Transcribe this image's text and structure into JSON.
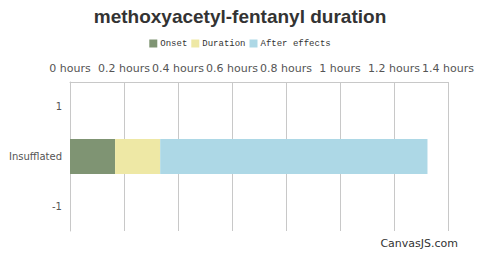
{
  "chart_data": {
    "type": "bar",
    "title": "methoxyacetyl-fentanyl duration",
    "orientation": "horizontal",
    "stacked": true,
    "grid": true,
    "legend": "top",
    "categories": [
      "1",
      "Insufflated",
      "-1"
    ],
    "series": [
      {
        "name": "Onset",
        "color": "#7f9473",
        "values": [
          null,
          0.167,
          null
        ]
      },
      {
        "name": "Duration",
        "color": "#eee8a5",
        "values": [
          null,
          0.167,
          null
        ]
      },
      {
        "name": "After effects",
        "color": "#add8e6",
        "values": [
          null,
          0.99,
          null
        ]
      }
    ],
    "xlim": [
      0,
      1.4
    ],
    "xticks": [
      {
        "value": 0,
        "label": "0 hours"
      },
      {
        "value": 0.2,
        "label": "0.2 hours"
      },
      {
        "value": 0.4,
        "label": "0.4 hours"
      },
      {
        "value": 0.6,
        "label": "0.6 hours"
      },
      {
        "value": 0.8,
        "label": "0.8 hours"
      },
      {
        "value": 1,
        "label": "1 hours"
      },
      {
        "value": 1.2,
        "label": "1.2 hours"
      },
      {
        "value": 1.4,
        "label": "1.4 hours"
      }
    ],
    "annotations": [
      "CanvasJS.com"
    ]
  }
}
